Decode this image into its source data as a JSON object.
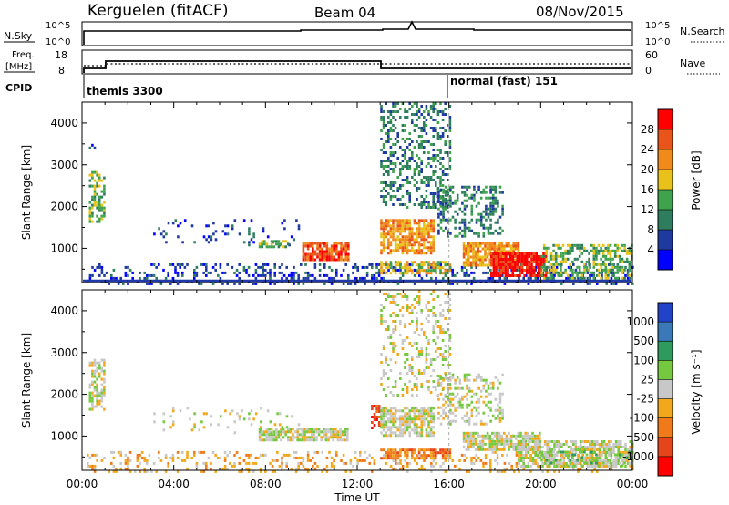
{
  "header": {
    "station": "Kerguelen (fitACF)",
    "beam": "Beam 04",
    "date": "08/Nov/2015"
  },
  "strips": {
    "nsky_label": "N.Sky",
    "nsky_ticks": [
      "10^5",
      "10^0"
    ],
    "nsearch_label": "N.Search",
    "nsearch_ticks": [
      "10^5",
      "10^0"
    ],
    "freq_label_1": "Freq.",
    "freq_label_2": "[MHz]",
    "freq_ticks": [
      "18",
      "8"
    ],
    "nave_label": "Nave",
    "nave_ticks": [
      "60",
      "0"
    ],
    "cpid_label": "CPID",
    "cpid_1": "themis 3300",
    "cpid_2": "normal (fast) 151"
  },
  "colors": {
    "power": [
      "#0000ff",
      "#1f3a9e",
      "#2e7d5e",
      "#3fa34d",
      "#e8c21a",
      "#f08a1a",
      "#e9541a",
      "#ff0000"
    ],
    "velocity": [
      "#2242c8",
      "#3b78b8",
      "#2f9a5e",
      "#74c93f",
      "#c8c8c8",
      "#f2a81d",
      "#f07a1a",
      "#e4451b",
      "#ff0000"
    ]
  },
  "chart_data": [
    {
      "type": "heatmap",
      "xlabel": "",
      "ylabel": "Slant Range [km]",
      "xlim": [
        0,
        24
      ],
      "ylim": [
        180,
        4500
      ],
      "yticks": [
        1000,
        2000,
        3000,
        4000
      ],
      "colorbar_label": "Power [dB]",
      "colorbar_ticks": [
        "4",
        "8",
        "12",
        "16",
        "20",
        "24",
        "28"
      ],
      "colorbar_range": [
        0,
        32
      ],
      "regions": [
        {
          "t0": 0.2,
          "t1": 24,
          "r0": 180,
          "r1": 640,
          "level": 1,
          "density": 0.28
        },
        {
          "t0": 0.3,
          "t1": 1.0,
          "r0": 1650,
          "r1": 2850,
          "level": 3,
          "density": 0.55
        },
        {
          "t0": 0.3,
          "t1": 0.6,
          "r0": 3200,
          "r1": 3500,
          "level": 1,
          "density": 0.3
        },
        {
          "t0": 3.0,
          "t1": 9.5,
          "r0": 1050,
          "r1": 1700,
          "level": 1,
          "density": 0.1
        },
        {
          "t0": 7.7,
          "t1": 9.0,
          "r0": 1020,
          "r1": 1200,
          "level": 3,
          "density": 0.7
        },
        {
          "t0": 9.6,
          "t1": 11.6,
          "r0": 700,
          "r1": 1150,
          "level": 6,
          "density": 0.85
        },
        {
          "t0": 13.0,
          "t1": 15.3,
          "r0": 900,
          "r1": 1700,
          "level": 5,
          "density": 0.75
        },
        {
          "t0": 13.0,
          "t1": 16.0,
          "r0": 2000,
          "r1": 4500,
          "level": 2,
          "density": 0.35
        },
        {
          "t0": 13.0,
          "t1": 16.0,
          "r0": 420,
          "r1": 700,
          "level": 4,
          "density": 0.7
        },
        {
          "t0": 15.5,
          "t1": 18.3,
          "r0": 1300,
          "r1": 2500,
          "level": 2,
          "density": 0.35
        },
        {
          "t0": 16.6,
          "t1": 19.0,
          "r0": 600,
          "r1": 1150,
          "level": 5,
          "density": 0.75
        },
        {
          "t0": 17.8,
          "t1": 20.2,
          "r0": 350,
          "r1": 900,
          "level": 7,
          "density": 0.85
        },
        {
          "t0": 20.0,
          "t1": 24.0,
          "r0": 300,
          "r1": 1100,
          "level": 3,
          "density": 0.55
        }
      ]
    },
    {
      "type": "heatmap",
      "xlabel": "Time UT",
      "ylabel": "Slant Range [km]",
      "xlim": [
        0,
        24
      ],
      "ylim": [
        180,
        4500
      ],
      "xticks": [
        "00:00",
        "04:00",
        "08:00",
        "12:00",
        "16:00",
        "20:00",
        "00:00"
      ],
      "yticks": [
        1000,
        2000,
        3000,
        4000
      ],
      "colorbar_label": "Velocity [m s⁻¹]",
      "colorbar_ticks": [
        "1000",
        "500",
        "100",
        "25",
        "-25",
        "-100",
        "-500",
        "-1000"
      ],
      "regions": [
        {
          "t0": 0.2,
          "t1": 24,
          "r0": 180,
          "r1": 640,
          "level": 5,
          "density": 0.22
        },
        {
          "t0": 0.3,
          "t1": 1.0,
          "r0": 1650,
          "r1": 2850,
          "level": 4,
          "density": 0.55
        },
        {
          "t0": 3.0,
          "t1": 9.5,
          "r0": 1050,
          "r1": 1700,
          "level": 4,
          "density": 0.1
        },
        {
          "t0": 7.7,
          "t1": 11.6,
          "r0": 900,
          "r1": 1200,
          "level": 4,
          "density": 0.8
        },
        {
          "t0": 12.6,
          "t1": 13.0,
          "r0": 1200,
          "r1": 1750,
          "level": 7,
          "density": 0.7
        },
        {
          "t0": 13.0,
          "t1": 15.3,
          "r0": 1000,
          "r1": 1700,
          "level": 4,
          "density": 0.75
        },
        {
          "t0": 13.0,
          "t1": 16.0,
          "r0": 2000,
          "r1": 4500,
          "level": 4,
          "density": 0.25
        },
        {
          "t0": 13.0,
          "t1": 16.0,
          "r0": 450,
          "r1": 700,
          "level": 6,
          "density": 0.8
        },
        {
          "t0": 15.5,
          "t1": 18.3,
          "r0": 1300,
          "r1": 2500,
          "level": 4,
          "density": 0.35
        },
        {
          "t0": 16.6,
          "t1": 20.0,
          "r0": 700,
          "r1": 1100,
          "level": 4,
          "density": 0.8
        },
        {
          "t0": 19.0,
          "t1": 24.0,
          "r0": 300,
          "r1": 900,
          "level": 4,
          "density": 0.75
        },
        {
          "t0": 20.0,
          "t1": 24.0,
          "r0": 300,
          "r1": 650,
          "level": 3,
          "density": 0.3
        }
      ]
    }
  ]
}
